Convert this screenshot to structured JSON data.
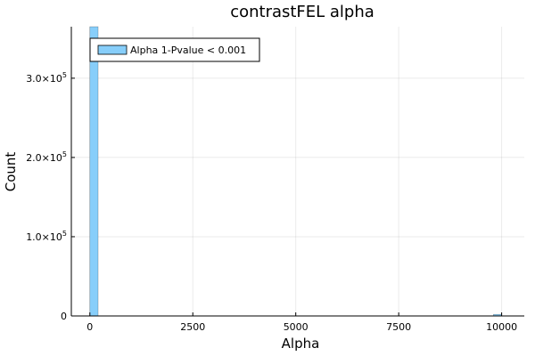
{
  "chart_data": {
    "type": "bar",
    "title": "contrastFEL alpha",
    "xlabel": "Alpha",
    "ylabel": "Count",
    "xlim": [
      -450,
      10550
    ],
    "ylim": [
      0,
      365000
    ],
    "xticks": [
      0,
      2500,
      5000,
      7500,
      10000
    ],
    "xtick_labels": [
      "0",
      "2500",
      "5000",
      "7500",
      "10000"
    ],
    "yticks": [
      0,
      100000,
      200000,
      300000
    ],
    "ytick_labels": [
      {
        "mantissa": "0",
        "exp": ""
      },
      {
        "mantissa": "1.0×10",
        "exp": "5"
      },
      {
        "mantissa": "2.0×10",
        "exp": "5"
      },
      {
        "mantissa": "3.0×10",
        "exp": "5"
      }
    ],
    "grid": true,
    "legend_position": "top-left",
    "series": [
      {
        "name": "Alpha 1-Pvalue < 0.001",
        "color": "#87cefa",
        "bins": [
          {
            "x0": 0,
            "x1": 200,
            "count": 365000
          },
          {
            "x0": 9800,
            "x1": 10000,
            "count": 2000
          }
        ]
      }
    ]
  }
}
